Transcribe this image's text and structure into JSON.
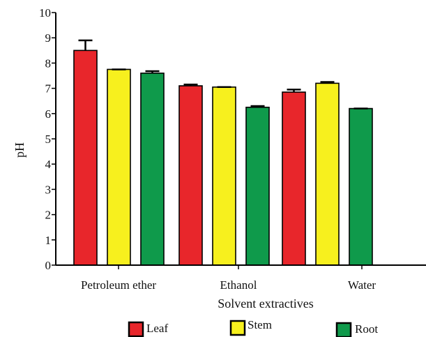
{
  "chart_data": {
    "type": "bar",
    "title": "",
    "xlabel": "Solvent extractives",
    "ylabel": "pH",
    "ylim": [
      0,
      10
    ],
    "yticks": [
      0,
      1,
      2,
      3,
      4,
      5,
      6,
      7,
      8,
      9,
      10
    ],
    "categories": [
      "Petroleum ether",
      "Ethanol",
      "Water"
    ],
    "series": [
      {
        "name": "Leaf",
        "color": "#e8262b",
        "values": [
          8.5,
          7.1,
          6.85
        ],
        "errors": [
          0.4,
          0.05,
          0.1
        ]
      },
      {
        "name": "Stem",
        "color": "#f7f01e",
        "values": [
          7.75,
          7.05,
          7.2
        ],
        "errors": [
          0.0,
          0.0,
          0.05
        ]
      },
      {
        "name": "Root",
        "color": "#0f9a4b",
        "values": [
          7.6,
          6.25,
          6.2
        ],
        "errors": [
          0.08,
          0.05,
          0.0
        ]
      }
    ],
    "grid": false,
    "error_bars": true,
    "legend_position": "bottom"
  }
}
